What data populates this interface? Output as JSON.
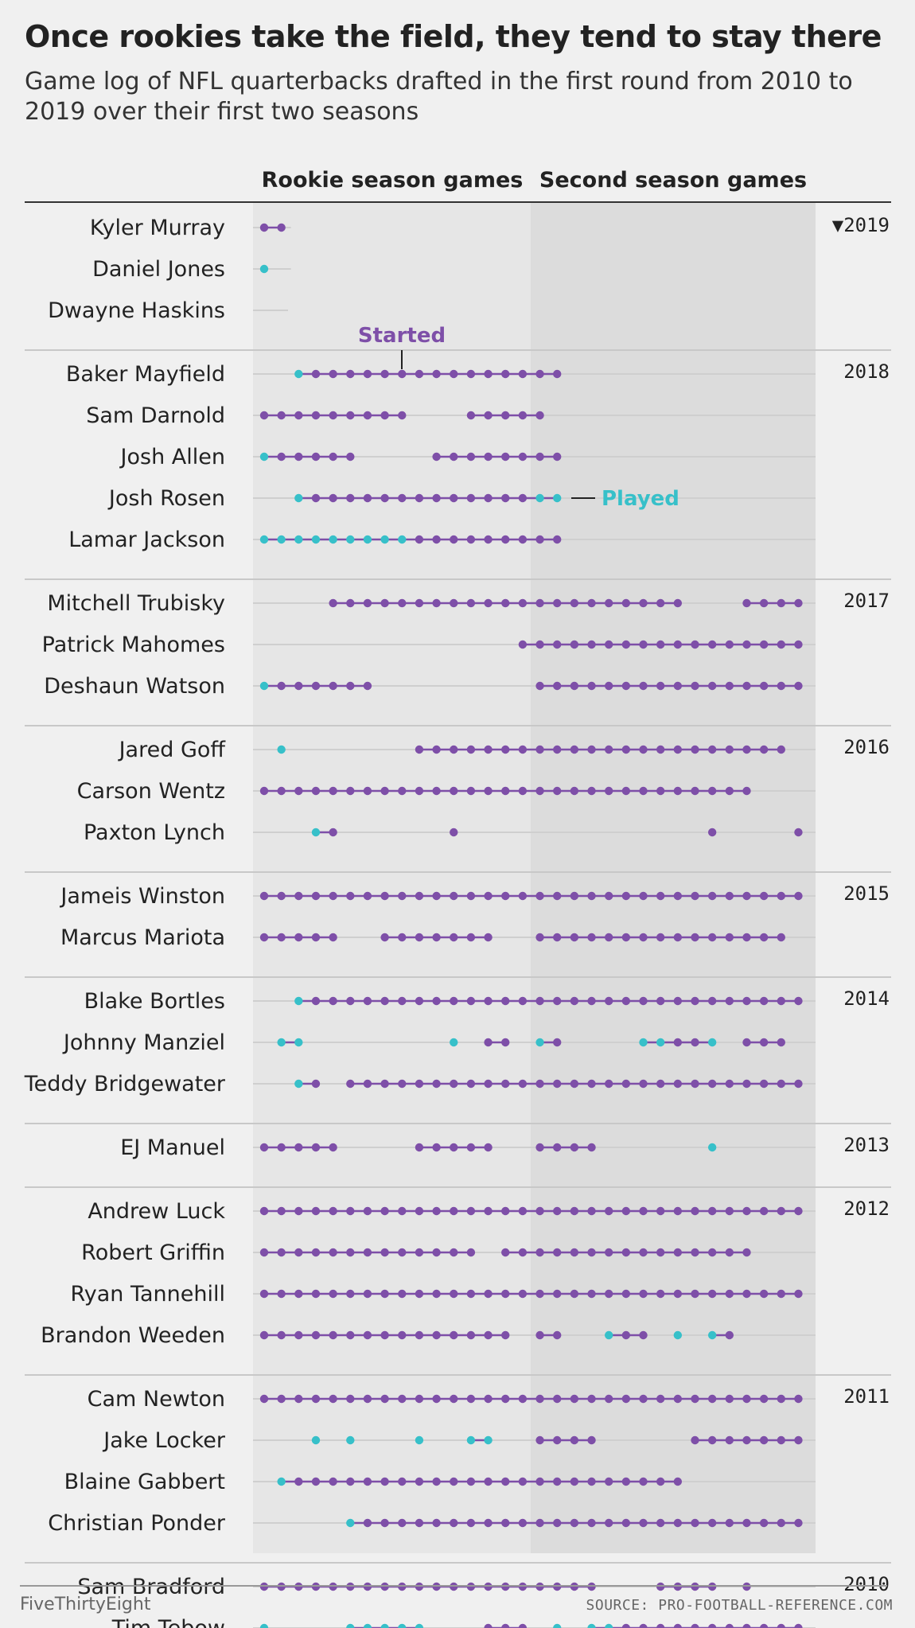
{
  "header": {
    "title": "Once rookies take the field, they tend to stay there",
    "subtitle": "Game log of NFL quarterbacks drafted in the first round from 2010 to 2019 over their first two seasons"
  },
  "columns": {
    "rookie": "Rookie season games",
    "second": "Second season games"
  },
  "annotations": {
    "started": "Started",
    "played": "Played"
  },
  "footer": {
    "brand": "FiveThirtyEight",
    "source": "SOURCE: PRO-FOOTBALL-REFERENCE.COM"
  },
  "colors": {
    "started": "#7e4fa8",
    "played": "#37c0c9",
    "rookie_bg": "#e6e6e6",
    "second_bg": "#dcdcdc",
    "page_bg": "#f0f0f0"
  },
  "chart_data": {
    "type": "scatter",
    "legend": {
      "S": "Started",
      "P": "Played"
    },
    "games_per_season": 16,
    "groups": [
      {
        "year": "2019",
        "year_label": "▼2019",
        "players": [
          {
            "name": "Kyler Murray",
            "games": {
              "1": "S",
              "2": "S"
            }
          },
          {
            "name": "Daniel Jones",
            "games": {
              "1": "P"
            }
          },
          {
            "name": "Dwayne Haskins",
            "games": {}
          }
        ]
      },
      {
        "year": "2018",
        "year_label": "2018",
        "players": [
          {
            "name": "Baker Mayfield",
            "games": {
              "3": "P",
              "4": "S",
              "5": "S",
              "6": "S",
              "7": "S",
              "8": "S",
              "9": "S",
              "10": "S",
              "11": "S",
              "12": "S",
              "13": "S",
              "14": "S",
              "15": "S",
              "16": "S",
              "17": "S",
              "18": "S"
            }
          },
          {
            "name": "Sam Darnold",
            "games": {
              "1": "S",
              "2": "S",
              "3": "S",
              "4": "S",
              "5": "S",
              "6": "S",
              "7": "S",
              "8": "S",
              "9": "S",
              "13": "S",
              "14": "S",
              "15": "S",
              "16": "S",
              "17": "S"
            }
          },
          {
            "name": "Josh Allen",
            "games": {
              "1": "P",
              "2": "S",
              "3": "S",
              "4": "S",
              "5": "S",
              "6": "S",
              "11": "S",
              "12": "S",
              "13": "S",
              "14": "S",
              "15": "S",
              "16": "S",
              "17": "S",
              "18": "S"
            }
          },
          {
            "name": "Josh Rosen",
            "games": {
              "3": "P",
              "4": "S",
              "5": "S",
              "6": "S",
              "7": "S",
              "8": "S",
              "9": "S",
              "10": "S",
              "11": "S",
              "12": "S",
              "13": "S",
              "14": "S",
              "15": "S",
              "16": "S",
              "17": "P",
              "18": "P"
            }
          },
          {
            "name": "Lamar Jackson",
            "games": {
              "1": "P",
              "2": "P",
              "3": "P",
              "4": "P",
              "5": "P",
              "6": "P",
              "7": "P",
              "8": "P",
              "9": "P",
              "10": "S",
              "11": "S",
              "12": "S",
              "13": "S",
              "14": "S",
              "15": "S",
              "16": "S",
              "17": "S",
              "18": "S"
            }
          }
        ]
      },
      {
        "year": "2017",
        "year_label": "2017",
        "players": [
          {
            "name": "Mitchell Trubisky",
            "games": {
              "5": "S",
              "6": "S",
              "7": "S",
              "8": "S",
              "9": "S",
              "10": "S",
              "11": "S",
              "12": "S",
              "13": "S",
              "14": "S",
              "15": "S",
              "16": "S",
              "17": "S",
              "18": "S",
              "19": "S",
              "20": "S",
              "21": "S",
              "22": "S",
              "23": "S",
              "24": "S",
              "25": "S",
              "29": "S",
              "30": "S",
              "31": "S",
              "32": "S"
            }
          },
          {
            "name": "Patrick Mahomes",
            "games": {
              "16": "S",
              "17": "S",
              "18": "S",
              "19": "S",
              "20": "S",
              "21": "S",
              "22": "S",
              "23": "S",
              "24": "S",
              "25": "S",
              "26": "S",
              "27": "S",
              "28": "S",
              "29": "S",
              "30": "S",
              "31": "S",
              "32": "S"
            }
          },
          {
            "name": "Deshaun Watson",
            "games": {
              "1": "P",
              "2": "S",
              "3": "S",
              "4": "S",
              "5": "S",
              "6": "S",
              "7": "S",
              "17": "S",
              "18": "S",
              "19": "S",
              "20": "S",
              "21": "S",
              "22": "S",
              "23": "S",
              "24": "S",
              "25": "S",
              "26": "S",
              "27": "S",
              "28": "S",
              "29": "S",
              "30": "S",
              "31": "S",
              "32": "S"
            }
          }
        ]
      },
      {
        "year": "2016",
        "year_label": "2016",
        "players": [
          {
            "name": "Jared Goff",
            "games": {
              "2": "P",
              "10": "S",
              "11": "S",
              "12": "S",
              "13": "S",
              "14": "S",
              "15": "S",
              "16": "S",
              "17": "S",
              "18": "S",
              "19": "S",
              "20": "S",
              "21": "S",
              "22": "S",
              "23": "S",
              "24": "S",
              "25": "S",
              "26": "S",
              "27": "S",
              "28": "S",
              "29": "S",
              "30": "S",
              "31": "S"
            }
          },
          {
            "name": "Carson Wentz",
            "games": {
              "1": "S",
              "2": "S",
              "3": "S",
              "4": "S",
              "5": "S",
              "6": "S",
              "7": "S",
              "8": "S",
              "9": "S",
              "10": "S",
              "11": "S",
              "12": "S",
              "13": "S",
              "14": "S",
              "15": "S",
              "16": "S",
              "17": "S",
              "18": "S",
              "19": "S",
              "20": "S",
              "21": "S",
              "22": "S",
              "23": "S",
              "24": "S",
              "25": "S",
              "26": "S",
              "27": "S",
              "28": "S",
              "29": "S"
            }
          },
          {
            "name": "Paxton Lynch",
            "games": {
              "4": "P",
              "5": "S",
              "12": "S",
              "27": "S",
              "32": "S"
            }
          }
        ]
      },
      {
        "year": "2015",
        "year_label": "2015",
        "players": [
          {
            "name": "Jameis Winston",
            "games": {
              "1": "S",
              "2": "S",
              "3": "S",
              "4": "S",
              "5": "S",
              "6": "S",
              "7": "S",
              "8": "S",
              "9": "S",
              "10": "S",
              "11": "S",
              "12": "S",
              "13": "S",
              "14": "S",
              "15": "S",
              "16": "S",
              "17": "S",
              "18": "S",
              "19": "S",
              "20": "S",
              "21": "S",
              "22": "S",
              "23": "S",
              "24": "S",
              "25": "S",
              "26": "S",
              "27": "S",
              "28": "S",
              "29": "S",
              "30": "S",
              "31": "S",
              "32": "S"
            }
          },
          {
            "name": "Marcus Mariota",
            "games": {
              "1": "S",
              "2": "S",
              "3": "S",
              "4": "S",
              "5": "S",
              "8": "S",
              "9": "S",
              "10": "S",
              "11": "S",
              "12": "S",
              "13": "S",
              "14": "S",
              "17": "S",
              "18": "S",
              "19": "S",
              "20": "S",
              "21": "S",
              "22": "S",
              "23": "S",
              "24": "S",
              "25": "S",
              "26": "S",
              "27": "S",
              "28": "S",
              "29": "S",
              "30": "S",
              "31": "S"
            }
          }
        ]
      },
      {
        "year": "2014",
        "year_label": "2014",
        "players": [
          {
            "name": "Blake Bortles",
            "games": {
              "3": "P",
              "4": "S",
              "5": "S",
              "6": "S",
              "7": "S",
              "8": "S",
              "9": "S",
              "10": "S",
              "11": "S",
              "12": "S",
              "13": "S",
              "14": "S",
              "15": "S",
              "16": "S",
              "17": "S",
              "18": "S",
              "19": "S",
              "20": "S",
              "21": "S",
              "22": "S",
              "23": "S",
              "24": "S",
              "25": "S",
              "26": "S",
              "27": "S",
              "28": "S",
              "29": "S",
              "30": "S",
              "31": "S",
              "32": "S"
            }
          },
          {
            "name": "Johnny Manziel",
            "games": {
              "2": "P",
              "3": "P",
              "12": "P",
              "14": "S",
              "15": "S",
              "17": "P",
              "18": "S",
              "23": "P",
              "24": "P",
              "25": "S",
              "26": "S",
              "27": "P",
              "29": "S",
              "30": "S",
              "31": "S"
            }
          },
          {
            "name": "Teddy Bridgewater",
            "games": {
              "3": "P",
              "4": "S",
              "6": "S",
              "7": "S",
              "8": "S",
              "9": "S",
              "10": "S",
              "11": "S",
              "12": "S",
              "13": "S",
              "14": "S",
              "15": "S",
              "16": "S",
              "17": "S",
              "18": "S",
              "19": "S",
              "20": "S",
              "21": "S",
              "22": "S",
              "23": "S",
              "24": "S",
              "25": "S",
              "26": "S",
              "27": "S",
              "28": "S",
              "29": "S",
              "30": "S",
              "31": "S",
              "32": "S"
            }
          }
        ]
      },
      {
        "year": "2013",
        "year_label": "2013",
        "players": [
          {
            "name": "EJ Manuel",
            "games": {
              "1": "S",
              "2": "S",
              "3": "S",
              "4": "S",
              "5": "S",
              "10": "S",
              "11": "S",
              "12": "S",
              "13": "S",
              "14": "S",
              "17": "S",
              "18": "S",
              "19": "S",
              "20": "S",
              "27": "P"
            }
          }
        ]
      },
      {
        "year": "2012",
        "year_label": "2012",
        "players": [
          {
            "name": "Andrew Luck",
            "games": {
              "1": "S",
              "2": "S",
              "3": "S",
              "4": "S",
              "5": "S",
              "6": "S",
              "7": "S",
              "8": "S",
              "9": "S",
              "10": "S",
              "11": "S",
              "12": "S",
              "13": "S",
              "14": "S",
              "15": "S",
              "16": "S",
              "17": "S",
              "18": "S",
              "19": "S",
              "20": "S",
              "21": "S",
              "22": "S",
              "23": "S",
              "24": "S",
              "25": "S",
              "26": "S",
              "27": "S",
              "28": "S",
              "29": "S",
              "30": "S",
              "31": "S",
              "32": "S"
            }
          },
          {
            "name": "Robert Griffin",
            "games": {
              "1": "S",
              "2": "S",
              "3": "S",
              "4": "S",
              "5": "S",
              "6": "S",
              "7": "S",
              "8": "S",
              "9": "S",
              "10": "S",
              "11": "S",
              "12": "S",
              "13": "S",
              "15": "S",
              "16": "S",
              "17": "S",
              "18": "S",
              "19": "S",
              "20": "S",
              "21": "S",
              "22": "S",
              "23": "S",
              "24": "S",
              "25": "S",
              "26": "S",
              "27": "S",
              "28": "S",
              "29": "S"
            }
          },
          {
            "name": "Ryan Tannehill",
            "games": {
              "1": "S",
              "2": "S",
              "3": "S",
              "4": "S",
              "5": "S",
              "6": "S",
              "7": "S",
              "8": "S",
              "9": "S",
              "10": "S",
              "11": "S",
              "12": "S",
              "13": "S",
              "14": "S",
              "15": "S",
              "16": "S",
              "17": "S",
              "18": "S",
              "19": "S",
              "20": "S",
              "21": "S",
              "22": "S",
              "23": "S",
              "24": "S",
              "25": "S",
              "26": "S",
              "27": "S",
              "28": "S",
              "29": "S",
              "30": "S",
              "31": "S",
              "32": "S"
            }
          },
          {
            "name": "Brandon Weeden",
            "games": {
              "1": "S",
              "2": "S",
              "3": "S",
              "4": "S",
              "5": "S",
              "6": "S",
              "7": "S",
              "8": "S",
              "9": "S",
              "10": "S",
              "11": "S",
              "12": "S",
              "13": "S",
              "14": "S",
              "15": "S",
              "17": "S",
              "18": "S",
              "21": "P",
              "22": "S",
              "23": "S",
              "25": "P",
              "27": "P",
              "28": "S"
            }
          }
        ]
      },
      {
        "year": "2011",
        "year_label": "2011",
        "players": [
          {
            "name": "Cam Newton",
            "games": {
              "1": "S",
              "2": "S",
              "3": "S",
              "4": "S",
              "5": "S",
              "6": "S",
              "7": "S",
              "8": "S",
              "9": "S",
              "10": "S",
              "11": "S",
              "12": "S",
              "13": "S",
              "14": "S",
              "15": "S",
              "16": "S",
              "17": "S",
              "18": "S",
              "19": "S",
              "20": "S",
              "21": "S",
              "22": "S",
              "23": "S",
              "24": "S",
              "25": "S",
              "26": "S",
              "27": "S",
              "28": "S",
              "29": "S",
              "30": "S",
              "31": "S",
              "32": "S"
            }
          },
          {
            "name": "Jake Locker",
            "games": {
              "4": "P",
              "6": "P",
              "10": "P",
              "13": "P",
              "14": "P",
              "17": "S",
              "18": "S",
              "19": "S",
              "20": "S",
              "26": "S",
              "27": "S",
              "28": "S",
              "29": "S",
              "30": "S",
              "31": "S",
              "32": "S"
            }
          },
          {
            "name": "Blaine Gabbert",
            "games": {
              "2": "P",
              "3": "S",
              "4": "S",
              "5": "S",
              "6": "S",
              "7": "S",
              "8": "S",
              "9": "S",
              "10": "S",
              "11": "S",
              "12": "S",
              "13": "S",
              "14": "S",
              "15": "S",
              "16": "S",
              "17": "S",
              "18": "S",
              "19": "S",
              "20": "S",
              "21": "S",
              "22": "S",
              "23": "S",
              "24": "S",
              "25": "S"
            }
          },
          {
            "name": "Christian Ponder",
            "games": {
              "6": "P",
              "7": "S",
              "8": "S",
              "9": "S",
              "10": "S",
              "11": "S",
              "12": "S",
              "13": "S",
              "14": "S",
              "15": "S",
              "16": "S",
              "17": "S",
              "18": "S",
              "19": "S",
              "20": "S",
              "21": "S",
              "22": "S",
              "23": "S",
              "24": "S",
              "25": "S",
              "26": "S",
              "27": "S",
              "28": "S",
              "29": "S",
              "30": "S",
              "31": "S",
              "32": "S"
            }
          }
        ]
      },
      {
        "year": "2010",
        "year_label": "2010",
        "players": [
          {
            "name": "Sam Bradford",
            "games": {
              "1": "S",
              "2": "S",
              "3": "S",
              "4": "S",
              "5": "S",
              "6": "S",
              "7": "S",
              "8": "S",
              "9": "S",
              "10": "S",
              "11": "S",
              "12": "S",
              "13": "S",
              "14": "S",
              "15": "S",
              "16": "S",
              "17": "S",
              "18": "S",
              "19": "S",
              "20": "S",
              "24": "S",
              "25": "S",
              "26": "S",
              "27": "S",
              "29": "S"
            }
          },
          {
            "name": "Tim Tebow",
            "games": {
              "1": "P",
              "6": "P",
              "7": "P",
              "8": "P",
              "9": "P",
              "10": "P",
              "14": "S",
              "15": "S",
              "16": "S",
              "18": "P",
              "20": "P",
              "21": "P",
              "22": "S",
              "23": "S",
              "24": "S",
              "25": "S",
              "26": "S",
              "27": "S",
              "28": "S",
              "29": "S",
              "30": "S",
              "31": "S",
              "32": "S"
            }
          }
        ]
      }
    ]
  }
}
